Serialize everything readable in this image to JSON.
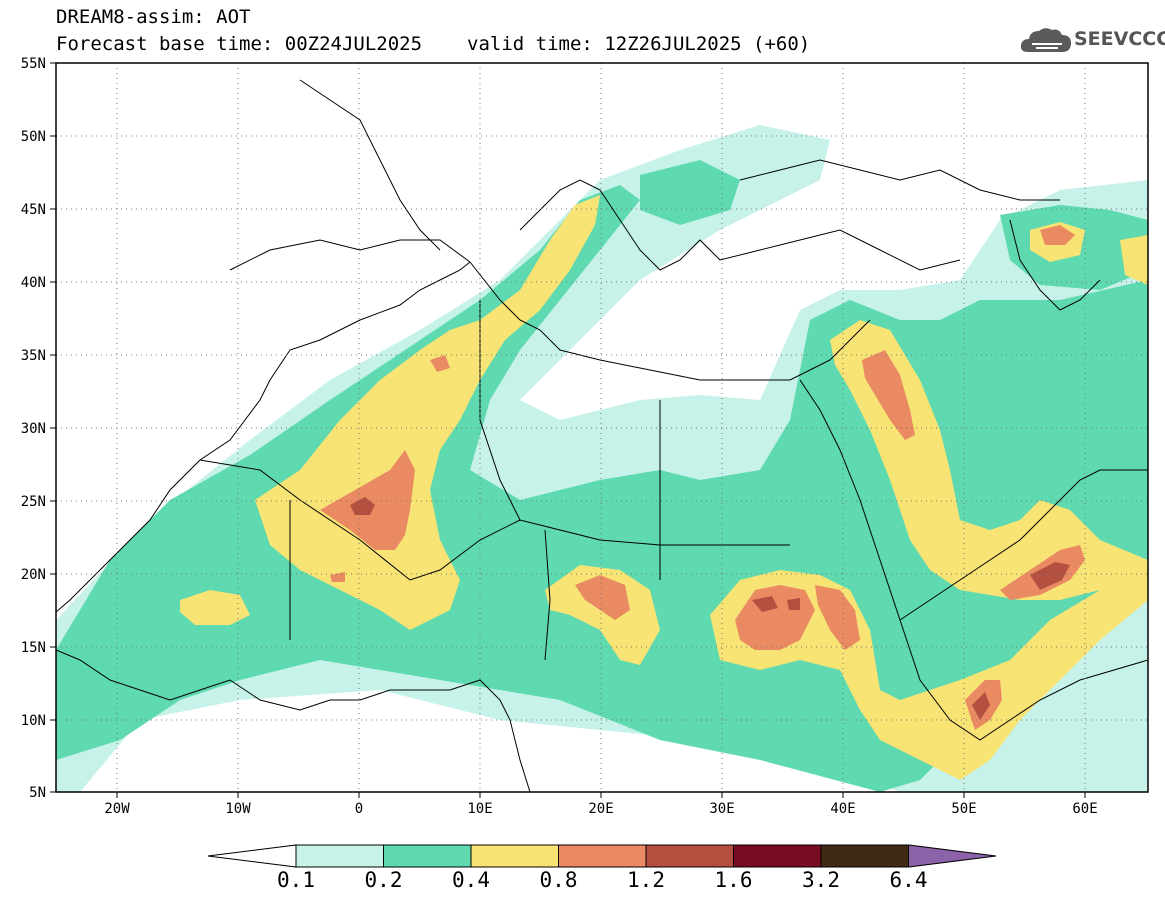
{
  "title": {
    "line1": "DREAM8-assim: AOT",
    "base_time": "Forecast base time: 00Z24JUL2025",
    "valid_time": "valid time: 12Z26JUL2025 (+60)"
  },
  "logo": {
    "text": "SEEVCCC",
    "icon": "cloud-icon"
  },
  "map": {
    "lat_labels": [
      "55N",
      "50N",
      "45N",
      "40N",
      "35N",
      "30N",
      "25N",
      "20N",
      "15N",
      "10N",
      "5N"
    ],
    "lon_labels": [
      "20W",
      "10W",
      "0",
      "10E",
      "20E",
      "30E",
      "40E",
      "50E",
      "60E"
    ],
    "lon_range": [
      -25,
      65
    ],
    "lat_range": [
      5,
      55
    ],
    "grid": "dotted"
  },
  "colorbar": {
    "labels": [
      "0.1",
      "0.2",
      "0.4",
      "0.8",
      "1.2",
      "1.6",
      "3.2",
      "6.4"
    ],
    "colors": [
      "#c6f2ea",
      "#5ed9b0",
      "#f7e474",
      "#e98a63",
      "#b4503f",
      "#7a0c21",
      "#3f2a16"
    ],
    "below_color": "#ffffff",
    "above_color": "#8b62a8"
  }
}
